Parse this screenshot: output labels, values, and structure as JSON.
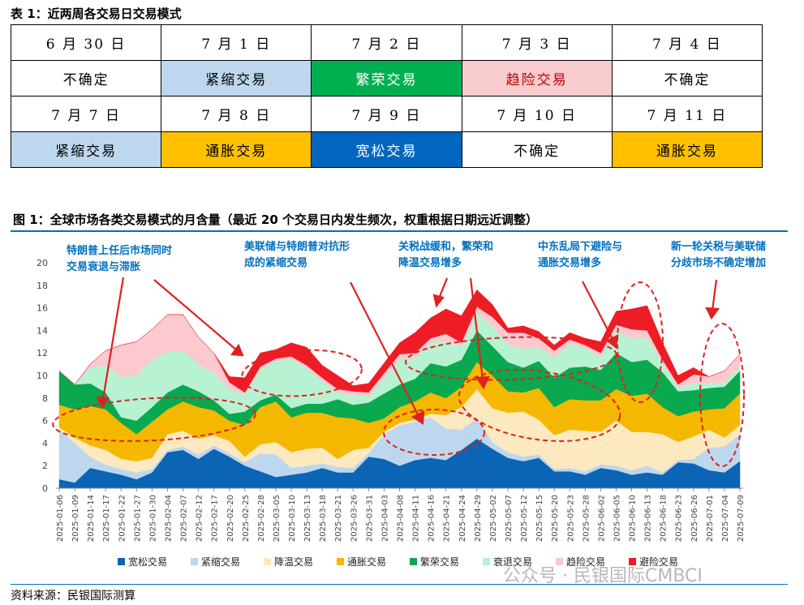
{
  "table": {
    "title": "表 1：近两周各交易日交易模式",
    "rows": [
      {
        "dates": [
          "6 月 30 日",
          "7 月 1 日",
          "7 月 2 日",
          "7 月 3 日",
          "7 月 4 日"
        ],
        "regimes": [
          "不确定",
          "紧缩交易",
          "繁荣交易",
          "趋险交易",
          "不确定"
        ]
      },
      {
        "dates": [
          "7 月 7 日",
          "7 月 8 日",
          "7 月 9 日",
          "7 月 10 日",
          "7 月 11 日"
        ],
        "regimes": [
          "紧缩交易",
          "通胀交易",
          "宽松交易",
          "不确定",
          "通胀交易"
        ]
      }
    ]
  },
  "figure": {
    "title": "图 1：全球市场各类交易模式的月含量（最近 20 个交易日内发生频次，权重根据日期远近调整）"
  },
  "source": "资料来源：民银国际测算",
  "watermark": "公众号 · 民银国际CMBCI",
  "annotations": [
    "特朗普上任后市场同时",
    "交易衰退与滞胀",
    "美联储与特朗普对抗形",
    "成的紧缩交易",
    "关税战缓和，繁荣和",
    "降温交易增多",
    "中东乱局下避险与",
    "通胀交易增多",
    "新一轮关税与美联储",
    "分歧市场不确定增加"
  ],
  "colors": {
    "宽松交易": "#0b64b4",
    "紧缩交易": "#bdd7ee",
    "降温交易": "#fde9c0",
    "通胀交易": "#f5b800",
    "繁荣交易": "#0aa84f",
    "衰退交易": "#b7f2d2",
    "趋险交易": "#fbc9cf",
    "避险交易": "#ee1c25"
  },
  "chart_data": {
    "type": "area",
    "stacked": true,
    "ylim": [
      0,
      20
    ],
    "yticks": [
      0,
      2,
      4,
      6,
      8,
      10,
      12,
      14,
      16,
      18,
      20
    ],
    "x_tick_labels": [
      "2025-01-06",
      "2025-01-09",
      "2025-01-14",
      "2025-01-17",
      "2025-01-22",
      "2025-01-27",
      "2025-01-30",
      "2025-02-04",
      "2025-02-07",
      "2025-02-12",
      "2025-02-17",
      "2025-02-20",
      "2025-02-25",
      "2025-02-28",
      "2025-03-05",
      "2025-03-10",
      "2025-03-13",
      "2025-03-18",
      "2025-03-21",
      "2025-03-26",
      "2025-03-31",
      "2025-04-03",
      "2025-04-08",
      "2025-04-11",
      "2025-04-16",
      "2025-04-21",
      "2025-04-24",
      "2025-04-29",
      "2025-05-02",
      "2025-05-07",
      "2025-05-12",
      "2025-05-15",
      "2025-05-20",
      "2025-05-23",
      "2025-05-28",
      "2025-06-02",
      "2025-06-05",
      "2025-06-10",
      "2025-06-13",
      "2025-06-18",
      "2025-06-23",
      "2025-06-26",
      "2025-07-01",
      "2025-07-04",
      "2025-07-09"
    ],
    "legend_position": "bottom",
    "grid": false,
    "series": [
      {
        "name": "宽松交易",
        "values": [
          0.8,
          0.5,
          1.8,
          1.5,
          1.2,
          0.8,
          1.4,
          3.2,
          3.4,
          2.6,
          3.5,
          2.8,
          2.0,
          1.5,
          1.0,
          1.2,
          1.4,
          1.8,
          1.4,
          1.4,
          2.8,
          2.6,
          2.0,
          2.5,
          2.7,
          2.5,
          3.4,
          4.4,
          3.5,
          2.7,
          2.4,
          2.7,
          1.5,
          1.5,
          1.2,
          1.8,
          1.6,
          1.2,
          1.4,
          1.2,
          2.3,
          2.2,
          1.6,
          1.4,
          2.4
        ]
      },
      {
        "name": "紧缩交易",
        "values": [
          4.4,
          3.5,
          1.0,
          0.6,
          0.5,
          0.6,
          0.3,
          0.2,
          0.3,
          0.4,
          0.3,
          0.3,
          0.3,
          1.6,
          2.0,
          0.6,
          0.6,
          0.4,
          0.5,
          0.4,
          0.3,
          2.2,
          3.6,
          3.4,
          3.6,
          2.8,
          1.8,
          1.8,
          0.6,
          0.5,
          0.4,
          0.3,
          0.2,
          0.3,
          0.3,
          0.3,
          0.4,
          0.4,
          0.6,
          0.2,
          0.2,
          0.4,
          2.0,
          2.3,
          2.4
        ]
      },
      {
        "name": "降温交易",
        "values": [
          0.2,
          0.5,
          1.0,
          1.3,
          0.9,
          1.0,
          1.0,
          1.4,
          1.4,
          1.4,
          0.9,
          1.1,
          0.5,
          0.8,
          1.1,
          1.4,
          1.5,
          1.4,
          0.7,
          1.6,
          0.5,
          0.2,
          0.2,
          0.2,
          0.3,
          1.2,
          2.0,
          2.6,
          3.0,
          3.5,
          4.0,
          3.1,
          3.0,
          3.4,
          3.6,
          2.9,
          4.0,
          3.4,
          3.0,
          3.4,
          1.6,
          2.0,
          1.6,
          0.8,
          0.8
        ]
      },
      {
        "name": "通胀交易",
        "values": [
          2.0,
          2.5,
          3.5,
          3.6,
          3.2,
          2.4,
          3.2,
          2.2,
          2.6,
          2.8,
          2.2,
          1.8,
          2.8,
          3.3,
          3.6,
          3.1,
          3.2,
          3.1,
          3.7,
          2.8,
          2.2,
          1.2,
          1.4,
          1.6,
          1.9,
          1.5,
          1.8,
          2.4,
          2.9,
          1.9,
          1.7,
          2.8,
          2.5,
          2.7,
          2.7,
          2.8,
          2.8,
          3.2,
          3.4,
          2.4,
          2.3,
          2.2,
          1.8,
          2.6,
          2.8
        ]
      },
      {
        "name": "繁荣交易",
        "values": [
          3.0,
          2.2,
          2.0,
          1.5,
          0.5,
          1.2,
          1.3,
          1.5,
          1.5,
          1.4,
          0.9,
          0.6,
          1.2,
          0.6,
          0.6,
          0.8,
          0.8,
          0.8,
          1.6,
          1.2,
          1.8,
          2.2,
          2.0,
          2.0,
          2.6,
          2.8,
          2.4,
          2.8,
          2.6,
          2.6,
          2.2,
          2.4,
          2.6,
          2.8,
          3.0,
          2.7,
          3.2,
          3.0,
          3.0,
          3.1,
          2.2,
          1.9,
          1.9,
          1.9,
          2.0
        ]
      },
      {
        "name": "衰退交易",
        "values": [
          0.0,
          0.0,
          1.4,
          2.4,
          3.6,
          4.0,
          4.2,
          3.6,
          3.0,
          2.4,
          2.4,
          2.2,
          1.5,
          2.8,
          3.0,
          4.4,
          3.2,
          2.0,
          0.6,
          0.8,
          0.6,
          1.4,
          2.3,
          1.8,
          1.8,
          2.3,
          1.2,
          1.6,
          1.8,
          1.6,
          1.7,
          1.2,
          1.8,
          2.1,
          1.6,
          1.2,
          2.0,
          2.1,
          2.0,
          0.8,
          0.4,
          0.6,
          0.4,
          0.4,
          0.5
        ]
      },
      {
        "name": "趋险交易",
        "values": [
          0.0,
          0.0,
          0.3,
          1.3,
          2.8,
          3.0,
          2.7,
          3.3,
          3.2,
          2.4,
          1.8,
          0.6,
          0.2,
          0.2,
          0.2,
          0.2,
          0.2,
          0.3,
          0.3,
          0.4,
          0.3,
          0.4,
          0.4,
          0.5,
          0.4,
          0.6,
          0.3,
          0.5,
          0.8,
          1.0,
          1.4,
          0.8,
          0.6,
          0.4,
          0.3,
          0.3,
          0.5,
          0.8,
          0.6,
          0.3,
          0.2,
          0.8,
          0.6,
          1.0,
          1.0
        ]
      },
      {
        "name": "避险交易",
        "values": [
          0.0,
          0.0,
          0.0,
          0.0,
          0.0,
          0.0,
          0.0,
          0.0,
          0.0,
          0.0,
          0.0,
          0.5,
          1.3,
          1.2,
          0.8,
          1.2,
          1.6,
          1.1,
          1.2,
          0.5,
          0.8,
          0.9,
          1.0,
          1.8,
          1.8,
          2.2,
          2.4,
          1.5,
          1.1,
          0.4,
          0.6,
          0.6,
          0.5,
          0.6,
          0.6,
          1.0,
          1.2,
          1.8,
          2.2,
          1.5,
          0.8,
          0.6,
          0.0,
          0.0,
          0.0
        ]
      }
    ]
  }
}
